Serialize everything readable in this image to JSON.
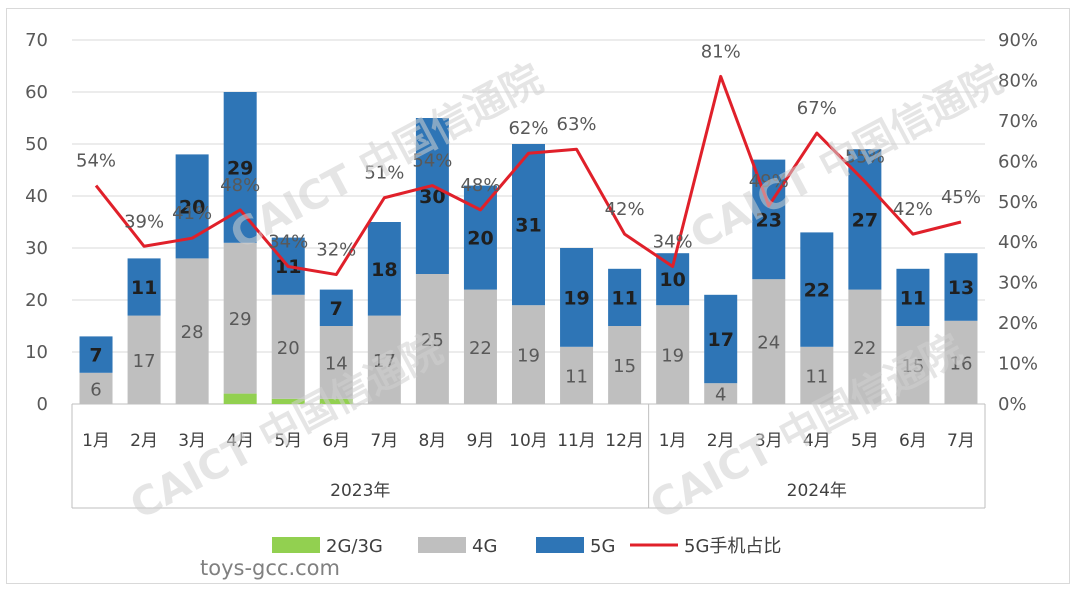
{
  "chart_data": {
    "type": "bar",
    "stacked": true,
    "categories": [
      "1月",
      "2月",
      "3月",
      "4月",
      "5月",
      "6月",
      "7月",
      "8月",
      "9月",
      "10月",
      "11月",
      "12月",
      "1月",
      "2月",
      "3月",
      "4月",
      "5月",
      "6月",
      "7月"
    ],
    "groups": [
      {
        "label": "2023年",
        "count": 12
      },
      {
        "label": "2024年",
        "count": 7
      }
    ],
    "series": [
      {
        "name": "2G/3G",
        "color": "#92d050",
        "values": [
          0,
          0,
          0,
          2,
          1,
          1,
          0,
          0,
          0,
          0,
          0,
          0,
          0,
          0,
          0,
          0,
          0,
          0,
          0
        ]
      },
      {
        "name": "4G",
        "color": "#bfbfbf",
        "values": [
          6,
          17,
          28,
          29,
          20,
          14,
          17,
          25,
          22,
          19,
          11,
          15,
          19,
          4,
          24,
          11,
          22,
          15,
          16
        ]
      },
      {
        "name": "5G",
        "color": "#2e75b6",
        "values": [
          7,
          11,
          20,
          29,
          11,
          7,
          18,
          30,
          20,
          31,
          19,
          11,
          10,
          17,
          23,
          22,
          27,
          11,
          13
        ]
      }
    ],
    "line_series": {
      "name": "5G手机占比",
      "color": "#e0202a",
      "axis": "right",
      "values": [
        54,
        39,
        41,
        48,
        34,
        32,
        51,
        54,
        48,
        62,
        63,
        42,
        34,
        81,
        49,
        67,
        55,
        42,
        45
      ]
    },
    "y_left": {
      "min": 0,
      "max": 70,
      "step": 10,
      "ticks": [
        "0",
        "10",
        "20",
        "30",
        "40",
        "50",
        "60",
        "70"
      ]
    },
    "y_right": {
      "min": 0,
      "max": 90,
      "step": 10,
      "ticks": [
        "0%",
        "10%",
        "20%",
        "30%",
        "40%",
        "50%",
        "60%",
        "70%",
        "80%",
        "90%"
      ]
    },
    "legend": {
      "position": "bottom"
    },
    "grid": true
  },
  "watermark": {
    "text": "CAICT 中国信通院"
  },
  "site_label": "toys-gcc.com"
}
